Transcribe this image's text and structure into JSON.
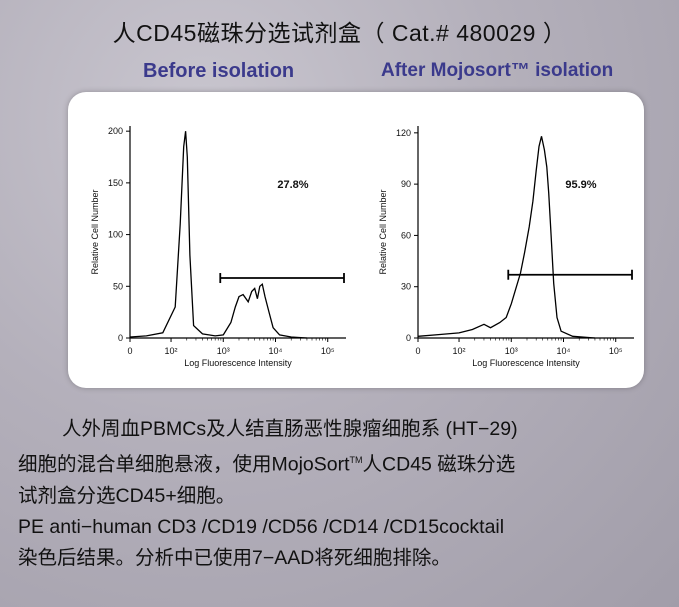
{
  "header": {
    "title": "人CD45磁珠分选试剂盒（ Cat.# 480029 ）",
    "before_label": "Before isolation",
    "after_label": "After Mojosort™  isolation"
  },
  "chart_data": [
    {
      "type": "line",
      "panel": "before",
      "xlabel": "Log Fluorescence Intensity",
      "ylabel": "Relative Cell Number",
      "x_tick_labels": [
        "0",
        "10²",
        "10³",
        "10⁴",
        "10⁵"
      ],
      "y_ticks": [
        0,
        50,
        100,
        150,
        200
      ],
      "ylim": [
        0,
        205
      ],
      "gate_label": "27.8%",
      "gate": {
        "x_from": "10³",
        "x_to": "10⁵+",
        "y": 58
      },
      "x_scale": "log (biexponential)",
      "series": [
        {
          "points": [
            [
              0,
              1
            ],
            [
              40,
              2
            ],
            [
              80,
              5
            ],
            [
              120,
              30
            ],
            [
              150,
              110
            ],
            [
              175,
              185
            ],
            [
              190,
              200
            ],
            [
              205,
              175
            ],
            [
              230,
              80
            ],
            [
              270,
              12
            ],
            [
              400,
              4
            ],
            [
              700,
              2
            ],
            [
              1000,
              3
            ],
            [
              1400,
              15
            ],
            [
              1700,
              30
            ],
            [
              2000,
              40
            ],
            [
              2400,
              42
            ],
            [
              3000,
              35
            ],
            [
              3500,
              45
            ],
            [
              4000,
              48
            ],
            [
              4500,
              38
            ],
            [
              5000,
              50
            ],
            [
              5600,
              52
            ],
            [
              6300,
              40
            ],
            [
              7500,
              25
            ],
            [
              9000,
              10
            ],
            [
              12000,
              3
            ],
            [
              20000,
              1
            ],
            [
              40000,
              0
            ]
          ]
        }
      ]
    },
    {
      "type": "line",
      "panel": "after",
      "xlabel": "Log Fluorescence Intensity",
      "ylabel": "Relative Cell Number",
      "x_tick_labels": [
        "0",
        "10²",
        "10³",
        "10⁴",
        "10⁵"
      ],
      "y_ticks": [
        0,
        30,
        60,
        90,
        120
      ],
      "ylim": [
        0,
        124
      ],
      "gate_label": "95.9%",
      "gate": {
        "x_from": "10³",
        "x_to": "10⁵+",
        "y": 37
      },
      "x_scale": "log (biexponential)",
      "series": [
        {
          "points": [
            [
              0,
              1
            ],
            [
              50,
              2
            ],
            [
              100,
              3
            ],
            [
              180,
              5
            ],
            [
              300,
              8
            ],
            [
              400,
              6
            ],
            [
              600,
              9
            ],
            [
              800,
              12
            ],
            [
              1000,
              20
            ],
            [
              1200,
              28
            ],
            [
              1500,
              38
            ],
            [
              1800,
              50
            ],
            [
              2200,
              65
            ],
            [
              2600,
              80
            ],
            [
              3000,
              98
            ],
            [
              3400,
              112
            ],
            [
              3800,
              118
            ],
            [
              4300,
              110
            ],
            [
              4800,
              100
            ],
            [
              5200,
              85
            ],
            [
              5800,
              60
            ],
            [
              6500,
              32
            ],
            [
              7500,
              12
            ],
            [
              9000,
              4
            ],
            [
              15000,
              1
            ],
            [
              40000,
              0
            ]
          ]
        }
      ]
    }
  ],
  "description": {
    "line1": "人外周血PBMCs及人结直肠恶性腺瘤细胞系 (HT−29)",
    "line2a": "细胞的混合单细胞悬液，使用MojoSort",
    "line2_tm": "TM",
    "line2b": "人CD45 磁珠分选",
    "line3": "试剂盒分选CD45+细胞。",
    "line4": "PE anti−human CD3 /CD19 /CD56 /CD14 /CD15cocktail",
    "line5": "染色后结果。分析中已使用7−AAD将死细胞排除。"
  }
}
